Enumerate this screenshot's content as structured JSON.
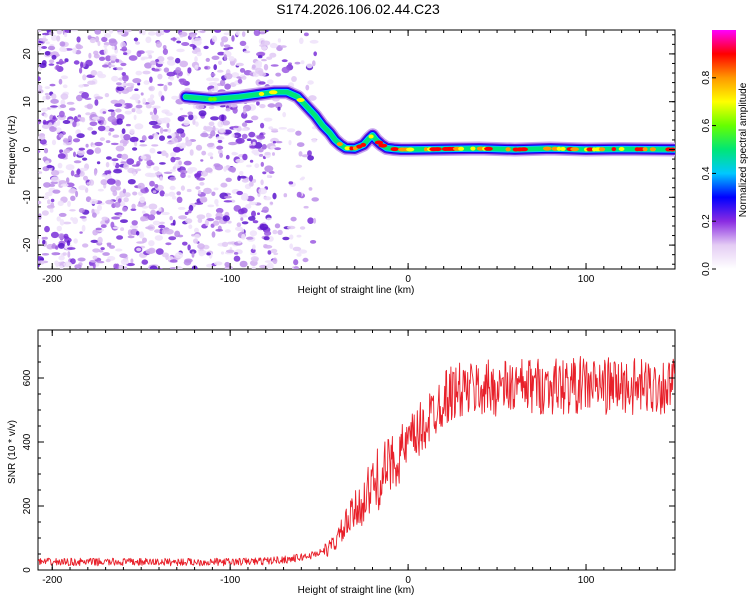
{
  "title": "S174.2026.106.02.44.C23",
  "chart_data": [
    {
      "type": "heatmap",
      "name": "spectrogram",
      "xlabel": "Height of straight line (km)",
      "ylabel": "Frequency (Hz)",
      "xlim": [
        -208,
        150
      ],
      "ylim": [
        -25,
        25
      ],
      "xticks": [
        -200,
        -100,
        0,
        100
      ],
      "yticks": [
        -20,
        -10,
        0,
        10,
        20
      ],
      "colorbar": {
        "label": "Normalized spectral amplitude",
        "range": [
          0,
          1
        ],
        "ticks": [
          0.0,
          0.2,
          0.4,
          0.6,
          0.8
        ],
        "tick_labels": [
          "0.0",
          "0.2",
          "0.4",
          "0.6",
          "0.8"
        ],
        "colors": [
          "#ffffff",
          "#e4ccf4",
          "#8a2be2",
          "#0000ff",
          "#00c8ff",
          "#00e676",
          "#66ff00",
          "#ffff00",
          "#ff9900",
          "#ff0000",
          "#ff00ff"
        ]
      },
      "ridge": {
        "x": [
          -125,
          -110,
          -95,
          -85,
          -75,
          -68,
          -62,
          -57,
          -52,
          -48,
          -44,
          -41,
          -38,
          -35,
          -30,
          -25,
          -22,
          -20,
          -18,
          -15,
          -12,
          -8,
          -4,
          0,
          20,
          40,
          60,
          80,
          100,
          120,
          150
        ],
        "y": [
          11,
          10.5,
          11,
          11.5,
          12,
          12,
          11,
          9,
          7,
          5,
          3.5,
          2,
          1,
          0.3,
          0.2,
          1,
          2.3,
          3,
          2,
          1,
          0.3,
          0.1,
          0,
          0,
          0.1,
          0.2,
          0,
          0.2,
          0,
          0.1,
          0
        ]
      },
      "noise_region_x": [
        -208,
        -60
      ]
    },
    {
      "type": "line",
      "name": "snr",
      "xlabel": "Height of straight line (km)",
      "ylabel": "SNR (10 * v/v)",
      "xlim": [
        -208,
        150
      ],
      "ylim": [
        0,
        750
      ],
      "xticks": [
        -200,
        -100,
        0,
        100
      ],
      "yticks": [
        0,
        200,
        400,
        600
      ],
      "color": "#e8202a",
      "series": [
        {
          "name": "SNR",
          "x": [
            -208,
            -150,
            -100,
            -80,
            -65,
            -55,
            -45,
            -40,
            -35,
            -30,
            -25,
            -20,
            -15,
            -10,
            -5,
            0,
            5,
            10,
            15,
            20,
            25,
            30,
            40,
            50,
            60,
            70,
            80,
            90,
            100,
            110,
            120,
            130,
            140,
            150
          ],
          "y": [
            25,
            25,
            25,
            28,
            35,
            45,
            65,
            95,
            140,
            180,
            220,
            260,
            300,
            330,
            360,
            390,
            420,
            460,
            500,
            540,
            555,
            560,
            565,
            570,
            570,
            575,
            575,
            575,
            580,
            575,
            575,
            570,
            575,
            575
          ]
        }
      ]
    }
  ]
}
